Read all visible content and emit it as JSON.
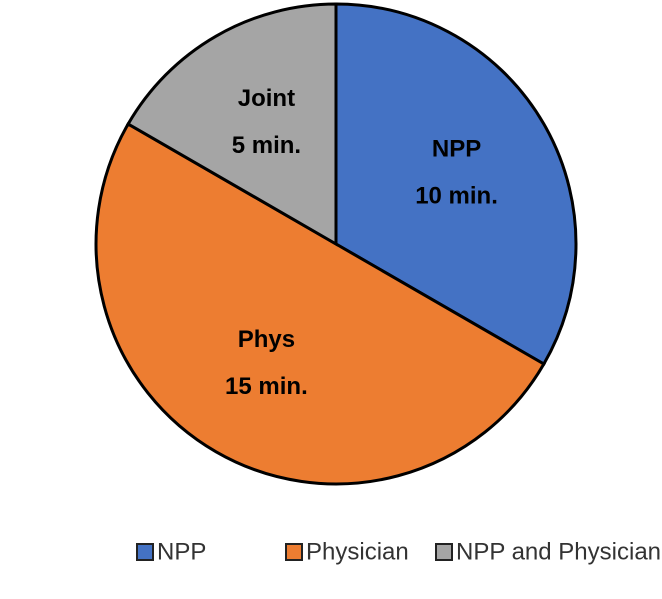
{
  "chart_data": {
    "type": "pie",
    "categories": [
      "NPP",
      "Physician",
      "NPP and Physician"
    ],
    "values": [
      10,
      15,
      5
    ],
    "label_names": [
      "NPP",
      "Phys",
      "Joint"
    ],
    "value_labels": [
      "10 min.",
      "15 min.",
      "5 min."
    ],
    "colors": [
      "#4472c4",
      "#ed7d31",
      "#a5a5a5"
    ],
    "legend": "bottom"
  }
}
